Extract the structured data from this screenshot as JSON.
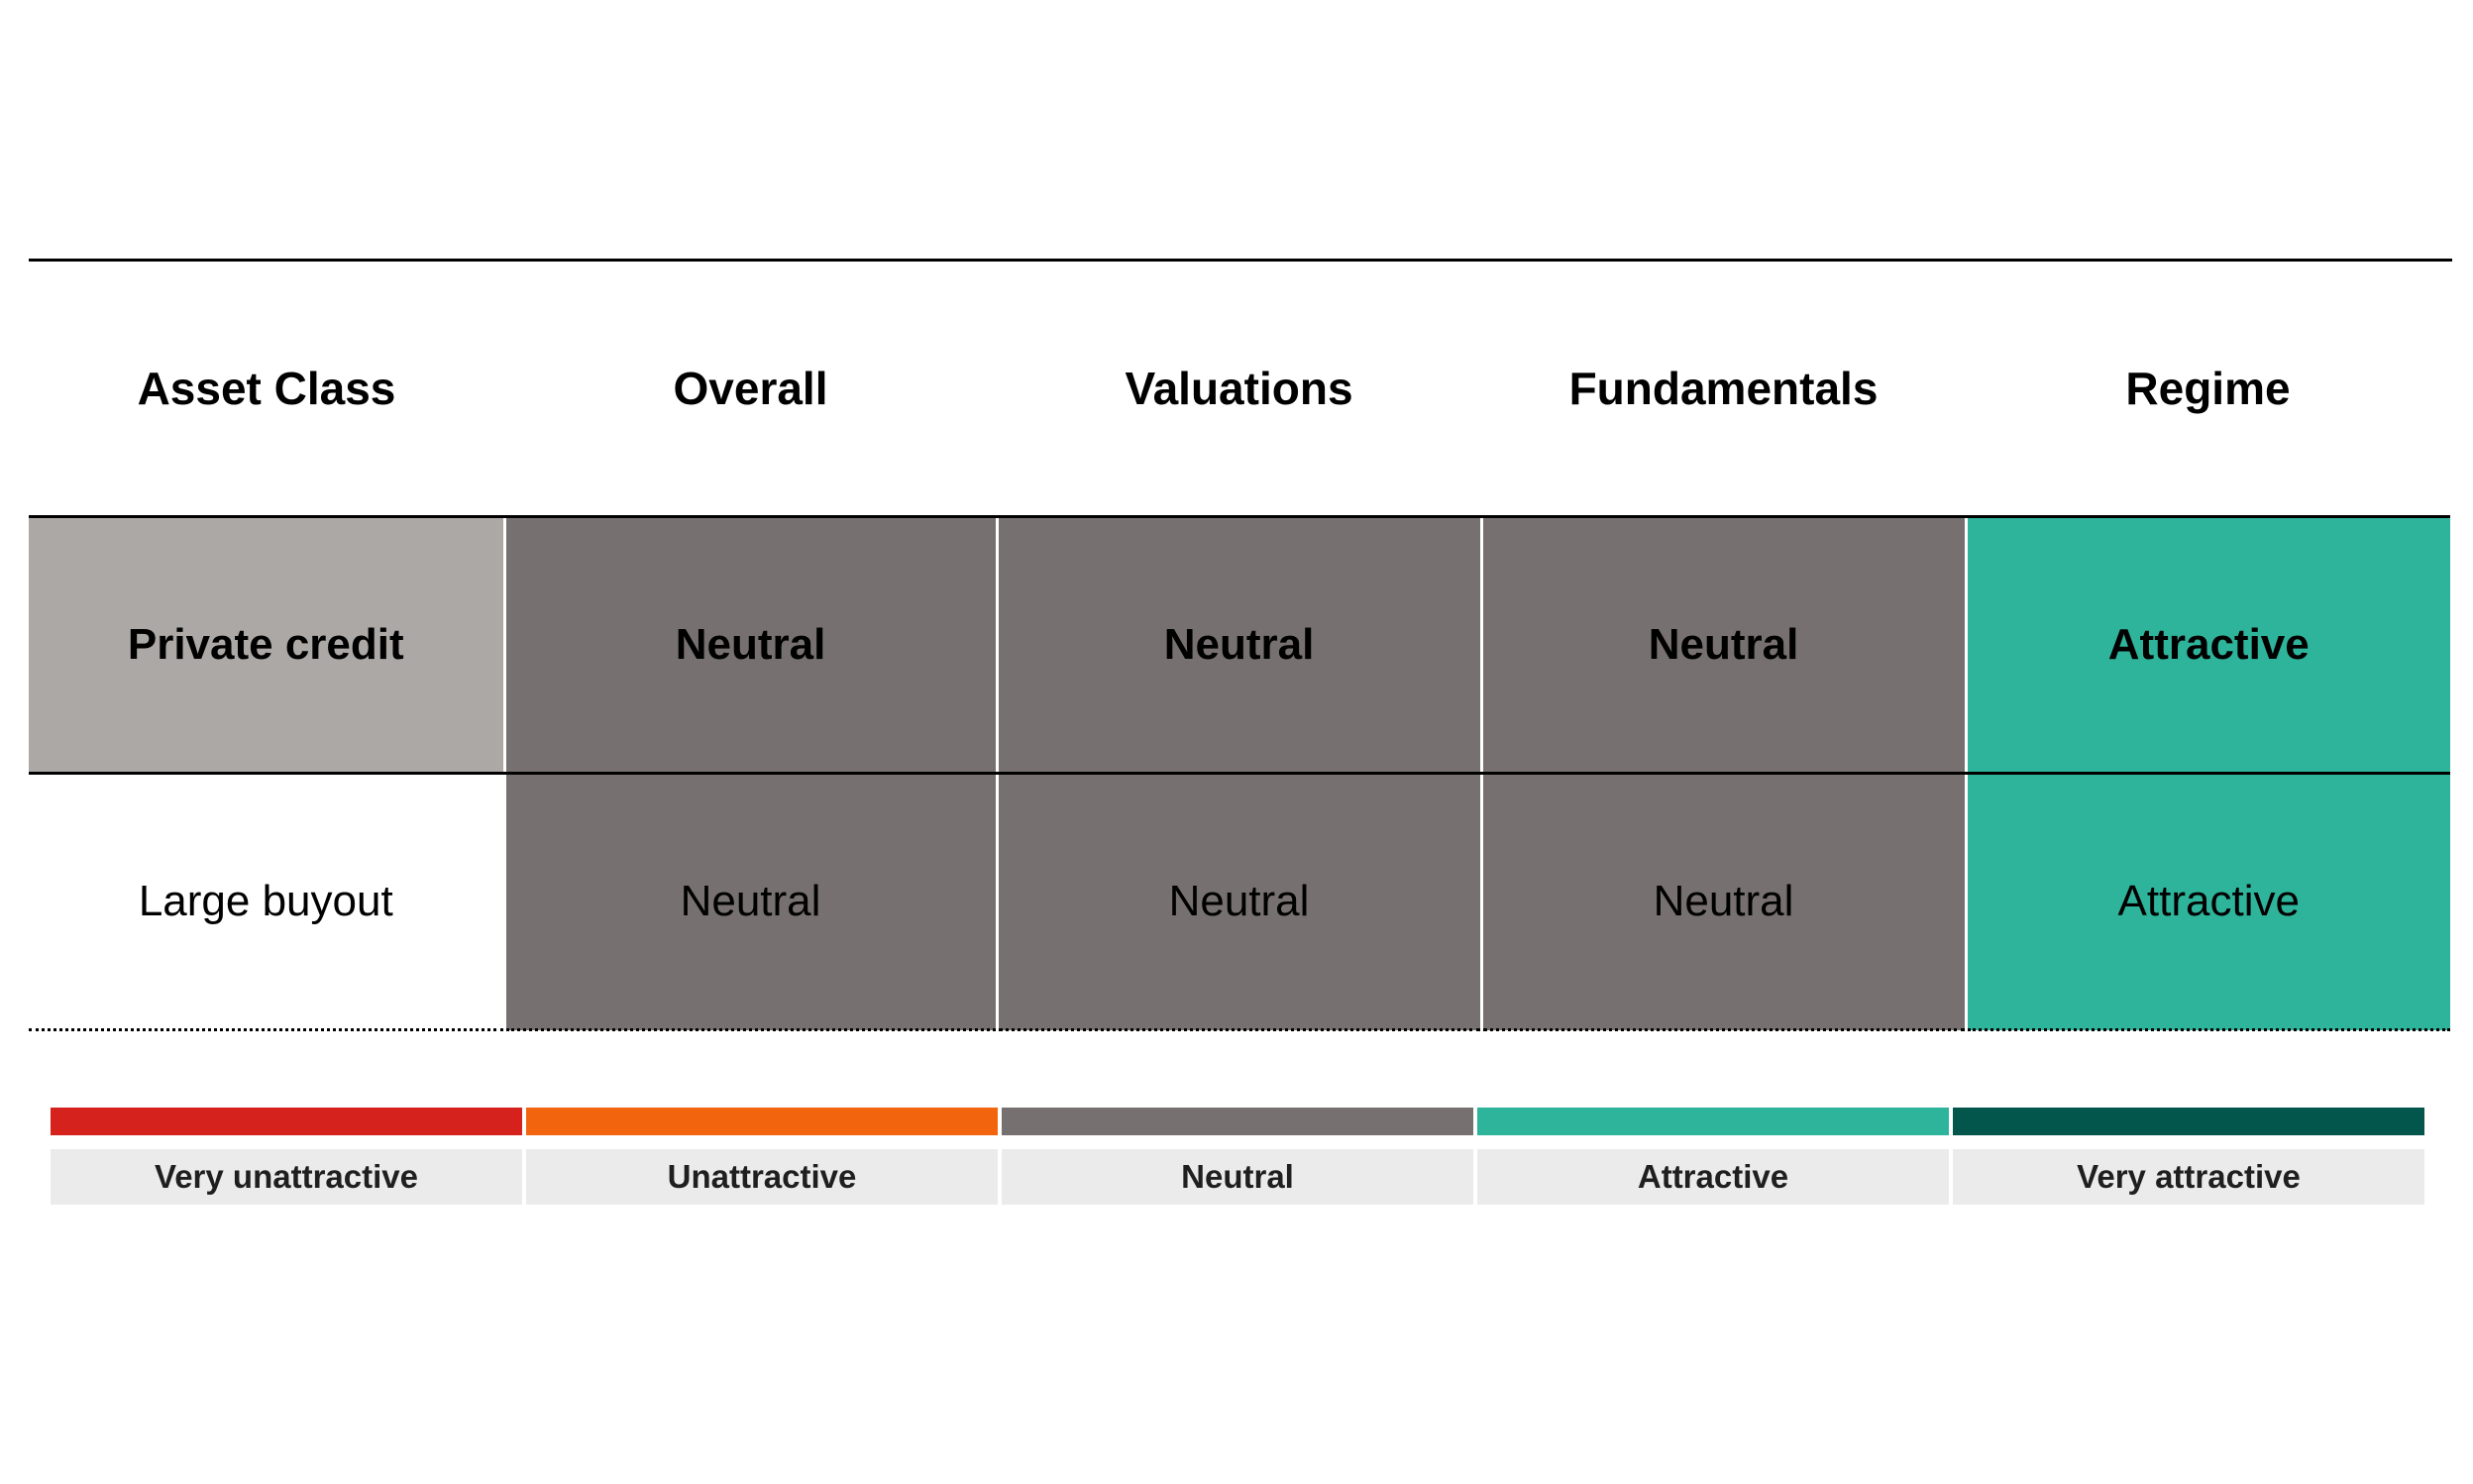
{
  "table": {
    "headers": [
      "Asset Class",
      "Overall",
      "Valuations",
      "Fundamentals",
      "Regime"
    ],
    "rows": [
      {
        "asset": "Private credit",
        "overall": "Neutral",
        "valuations": "Neutral",
        "fundamentals": "Neutral",
        "regime": "Attractive"
      },
      {
        "asset": "Large buyout",
        "overall": "Neutral",
        "valuations": "Neutral",
        "fundamentals": "Neutral",
        "regime": "Attractive"
      }
    ]
  },
  "legend": [
    {
      "label": "Very unattractive",
      "color": "#d5221d"
    },
    {
      "label": "Unattractive",
      "color": "#f2650e"
    },
    {
      "label": "Neutral",
      "color": "#767170"
    },
    {
      "label": "Attractive",
      "color": "#2fb49c"
    },
    {
      "label": "Very attractive",
      "color": "#02564b"
    }
  ],
  "colors": {
    "asset_highlight": "#aca8a6",
    "neutral": "#767170",
    "attractive": "#2fb49c",
    "legend_label_bg": "#ebebeb"
  }
}
